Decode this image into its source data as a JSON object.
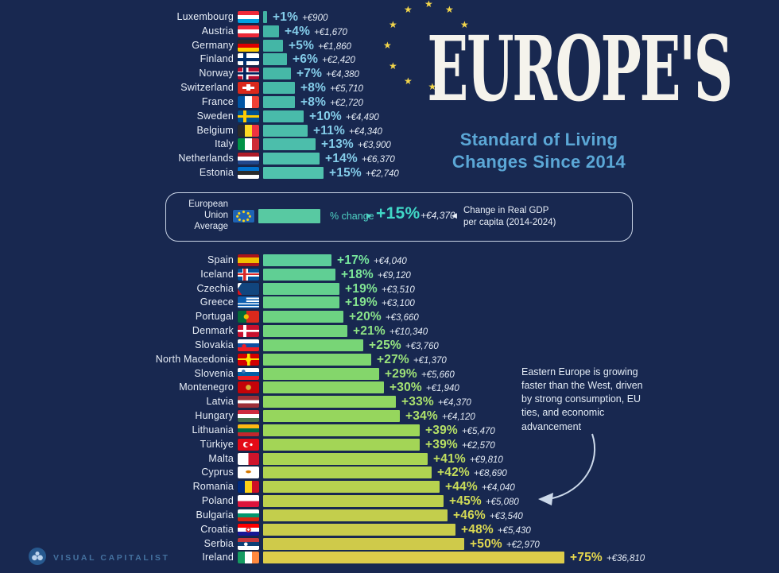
{
  "title": {
    "main": "EUROPE'S",
    "subtitle_line1": "Standard of Living",
    "subtitle_line2": "Changes Since 2014"
  },
  "eu_band": {
    "label": "European Union Average",
    "flag": "eu",
    "pct_axis_label": "% change",
    "pct_display": "+15%",
    "amount_display": "+€4,370",
    "description": "Change in Real GDP per capita (2014-2024)",
    "bar_color": "#58c9a2",
    "accent_color": "#41d8c7"
  },
  "annotation": {
    "text": "Eastern Europe is growing faster than the West, driven by strong consumption, EU ties, and economic advancement"
  },
  "footer": {
    "brand": "VISUAL CAPITALIST"
  },
  "colors": {
    "background": "#182850",
    "top_pct_label": "#84cdea",
    "amount_text": "#e3eaf4",
    "subtitle": "#5ba7d6",
    "star_yellow": "#f3d64b"
  },
  "chart_data": {
    "type": "bar",
    "title": "Europe's Standard of Living Changes Since 2014",
    "metric": "Change in Real GDP per capita (2014-2024)",
    "unit": "% change",
    "eu_average": {
      "pct": 15,
      "amount_eur": 4370
    },
    "top_group": [
      {
        "country": "Luxembourg",
        "flag": "lu",
        "pct": 1,
        "amount_eur": 900,
        "pct_display": "+1%",
        "amount_display": "+€900",
        "bar_color": "#42b4a4",
        "pct_color": "#84cdea"
      },
      {
        "country": "Austria",
        "flag": "at",
        "pct": 4,
        "amount_eur": 1670,
        "pct_display": "+4%",
        "amount_display": "+€1,670",
        "bar_color": "#43b5a5",
        "pct_color": "#84cdea"
      },
      {
        "country": "Germany",
        "flag": "de",
        "pct": 5,
        "amount_eur": 1860,
        "pct_display": "+5%",
        "amount_display": "+€1,860",
        "bar_color": "#44b6a6",
        "pct_color": "#84cdea"
      },
      {
        "country": "Finland",
        "flag": "fi",
        "pct": 6,
        "amount_eur": 2420,
        "pct_display": "+6%",
        "amount_display": "+€2,420",
        "bar_color": "#45b7a7",
        "pct_color": "#84cdea"
      },
      {
        "country": "Norway",
        "flag": "no",
        "pct": 7,
        "amount_eur": 4380,
        "pct_display": "+7%",
        "amount_display": "+€4,380",
        "bar_color": "#46b8a7",
        "pct_color": "#84cdea"
      },
      {
        "country": "Switzerland",
        "flag": "ch",
        "pct": 8,
        "amount_eur": 5710,
        "pct_display": "+8%",
        "amount_display": "+€5,710",
        "bar_color": "#47b9a8",
        "pct_color": "#84cdea"
      },
      {
        "country": "France",
        "flag": "fr",
        "pct": 8,
        "amount_eur": 2720,
        "pct_display": "+8%",
        "amount_display": "+€2,720",
        "bar_color": "#48baa9",
        "pct_color": "#84cdea"
      },
      {
        "country": "Sweden",
        "flag": "se",
        "pct": 10,
        "amount_eur": 4490,
        "pct_display": "+10%",
        "amount_display": "+€4,490",
        "bar_color": "#49bbaa",
        "pct_color": "#84cdea"
      },
      {
        "country": "Belgium",
        "flag": "be",
        "pct": 11,
        "amount_eur": 4340,
        "pct_display": "+11%",
        "amount_display": "+€4,340",
        "bar_color": "#4bbdaa",
        "pct_color": "#84cdea"
      },
      {
        "country": "Italy",
        "flag": "it",
        "pct": 13,
        "amount_eur": 3900,
        "pct_display": "+13%",
        "amount_display": "+€3,900",
        "bar_color": "#4cbeab",
        "pct_color": "#84cdea"
      },
      {
        "country": "Netherlands",
        "flag": "nl",
        "pct": 14,
        "amount_eur": 6370,
        "pct_display": "+14%",
        "amount_display": "+€6,370",
        "bar_color": "#4ec0ac",
        "pct_color": "#84cdea"
      },
      {
        "country": "Estonia",
        "flag": "ee",
        "pct": 15,
        "amount_eur": 2740,
        "pct_display": "+15%",
        "amount_display": "+€2,740",
        "bar_color": "#50c2ad",
        "pct_color": "#84cdea"
      }
    ],
    "bottom_group": [
      {
        "country": "Spain",
        "flag": "es",
        "pct": 17,
        "amount_eur": 4040,
        "pct_display": "+17%",
        "amount_display": "+€4,040",
        "bar_color": "#5ccd9b",
        "pct_color": "#76e59d"
      },
      {
        "country": "Iceland",
        "flag": "is",
        "pct": 18,
        "amount_eur": 9120,
        "pct_display": "+18%",
        "amount_display": "+€9,120",
        "bar_color": "#60cf94",
        "pct_color": "#7be598"
      },
      {
        "country": "Czechia",
        "flag": "cz",
        "pct": 19,
        "amount_eur": 3510,
        "pct_display": "+19%",
        "amount_display": "+€3,510",
        "bar_color": "#64d08e",
        "pct_color": "#80e493"
      },
      {
        "country": "Greece",
        "flag": "gr",
        "pct": 19,
        "amount_eur": 3100,
        "pct_display": "+19%",
        "amount_display": "+€3,100",
        "bar_color": "#69d288",
        "pct_color": "#85e48e"
      },
      {
        "country": "Portugal",
        "flag": "pt",
        "pct": 20,
        "amount_eur": 3660,
        "pct_display": "+20%",
        "amount_display": "+€3,660",
        "bar_color": "#6dd382",
        "pct_color": "#8ae48a"
      },
      {
        "country": "Denmark",
        "flag": "dk",
        "pct": 21,
        "amount_eur": 10340,
        "pct_display": "+21%",
        "amount_display": "+€10,340",
        "bar_color": "#72d47c",
        "pct_color": "#8fe485"
      },
      {
        "country": "Slovakia",
        "flag": "sk",
        "pct": 25,
        "amount_eur": 3760,
        "pct_display": "+25%",
        "amount_display": "+€3,760",
        "bar_color": "#78d576",
        "pct_color": "#95e380"
      },
      {
        "country": "North Macedonia",
        "flag": "mk",
        "pct": 27,
        "amount_eur": 1370,
        "pct_display": "+27%",
        "amount_display": "+€1,370",
        "bar_color": "#7ed570",
        "pct_color": "#9ae37b"
      },
      {
        "country": "Slovenia",
        "flag": "si",
        "pct": 29,
        "amount_eur": 5660,
        "pct_display": "+29%",
        "amount_display": "+€5,660",
        "bar_color": "#84d66b",
        "pct_color": "#9fe277"
      },
      {
        "country": "Montenegro",
        "flag": "me",
        "pct": 30,
        "amount_eur": 1940,
        "pct_display": "+30%",
        "amount_display": "+€1,940",
        "bar_color": "#8ad666",
        "pct_color": "#a5e273"
      },
      {
        "country": "Latvia",
        "flag": "lv",
        "pct": 33,
        "amount_eur": 4370,
        "pct_display": "+33%",
        "amount_display": "+€4,370",
        "bar_color": "#90d661",
        "pct_color": "#aae16e"
      },
      {
        "country": "Hungary",
        "flag": "hu",
        "pct": 34,
        "amount_eur": 4120,
        "pct_display": "+34%",
        "amount_display": "+€4,120",
        "bar_color": "#96d65d",
        "pct_color": "#afe16a"
      },
      {
        "country": "Lithuania",
        "flag": "lt",
        "pct": 39,
        "amount_eur": 5470,
        "pct_display": "+39%",
        "amount_display": "+€5,470",
        "bar_color": "#9dd659",
        "pct_color": "#b5e066"
      },
      {
        "country": "Türkiye",
        "flag": "tr",
        "pct": 39,
        "amount_eur": 2570,
        "pct_display": "+39%",
        "amount_display": "+€2,570",
        "bar_color": "#a3d556",
        "pct_color": "#bae062"
      },
      {
        "country": "Malta",
        "flag": "mt",
        "pct": 41,
        "amount_eur": 9810,
        "pct_display": "+41%",
        "amount_display": "+€9,810",
        "bar_color": "#aad453",
        "pct_color": "#c0df5f"
      },
      {
        "country": "Cyprus",
        "flag": "cy",
        "pct": 42,
        "amount_eur": 8690,
        "pct_display": "+42%",
        "amount_display": "+€8,690",
        "bar_color": "#b0d351",
        "pct_color": "#c5de5c"
      },
      {
        "country": "Romania",
        "flag": "ro",
        "pct": 44,
        "amount_eur": 4040,
        "pct_display": "+44%",
        "amount_display": "+€4,040",
        "bar_color": "#b7d24f",
        "pct_color": "#cadd59"
      },
      {
        "country": "Poland",
        "flag": "pl",
        "pct": 45,
        "amount_eur": 5080,
        "pct_display": "+45%",
        "amount_display": "+€5,080",
        "bar_color": "#bdd04d",
        "pct_color": "#d0dc56"
      },
      {
        "country": "Bulgaria",
        "flag": "bg",
        "pct": 46,
        "amount_eur": 3540,
        "pct_display": "+46%",
        "amount_display": "+€3,540",
        "bar_color": "#c3ce4c",
        "pct_color": "#d5da54"
      },
      {
        "country": "Croatia",
        "flag": "hr",
        "pct": 48,
        "amount_eur": 5430,
        "pct_display": "+48%",
        "amount_display": "+€5,430",
        "bar_color": "#c9cc4b",
        "pct_color": "#dad952"
      },
      {
        "country": "Serbia",
        "flag": "rs",
        "pct": 50,
        "amount_eur": 2970,
        "pct_display": "+50%",
        "amount_display": "+€2,970",
        "bar_color": "#cfca4a",
        "pct_color": "#e0d750"
      },
      {
        "country": "Ireland",
        "flag": "ie",
        "pct": 75,
        "amount_eur": 36810,
        "pct_display": "+75%",
        "amount_display": "+€36,810",
        "bar_color": "#ddcc4a",
        "pct_color": "#e8d94e"
      }
    ]
  }
}
